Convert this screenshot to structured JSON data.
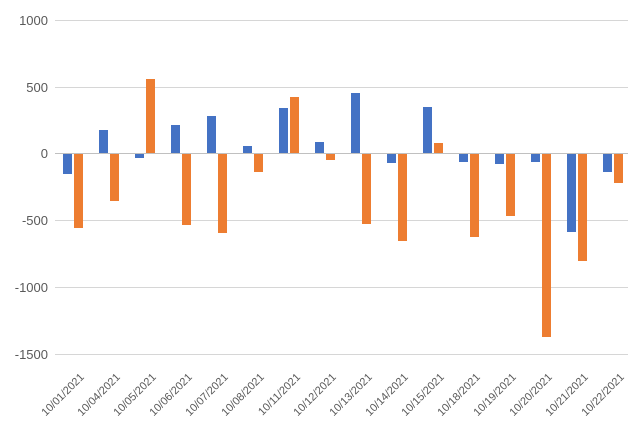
{
  "chart_data": {
    "type": "bar",
    "title": "",
    "xlabel": "",
    "ylabel": "",
    "categories": [
      "10/01/2021",
      "10/04/2021",
      "10/05/2021",
      "10/06/2021",
      "10/07/2021",
      "10/08/2021",
      "10/11/2021",
      "10/12/2021",
      "10/13/2021",
      "10/14/2021",
      "10/15/2021",
      "10/18/2021",
      "10/19/2021",
      "10/20/2021",
      "10/21/2021",
      "10/22/2021"
    ],
    "series": [
      {
        "name": "blue",
        "color": "#4472C4",
        "values": [
          -150,
          175,
          -25,
          215,
          280,
          55,
          340,
          85,
          455,
          -65,
          350,
          -55,
          -75,
          -55,
          -580,
          -130
        ]
      },
      {
        "name": "orange",
        "color": "#ED7D31",
        "values": [
          -550,
          -350,
          560,
          -530,
          -590,
          -135,
          420,
          -40,
          -525,
          -650,
          80,
          -620,
          -465,
          -1370,
          -800,
          -215
        ]
      }
    ],
    "y_ticks": [
      1000,
      500,
      0,
      -500,
      -1000,
      -1500
    ],
    "ylim": [
      -1500,
      1000
    ],
    "grid": "horizontal",
    "legend": "none",
    "x_label_rotation_deg": 45,
    "axis_text_color": "#595959",
    "gridline_color": "#D6D6D6",
    "background_color": "#FFFFFF"
  }
}
